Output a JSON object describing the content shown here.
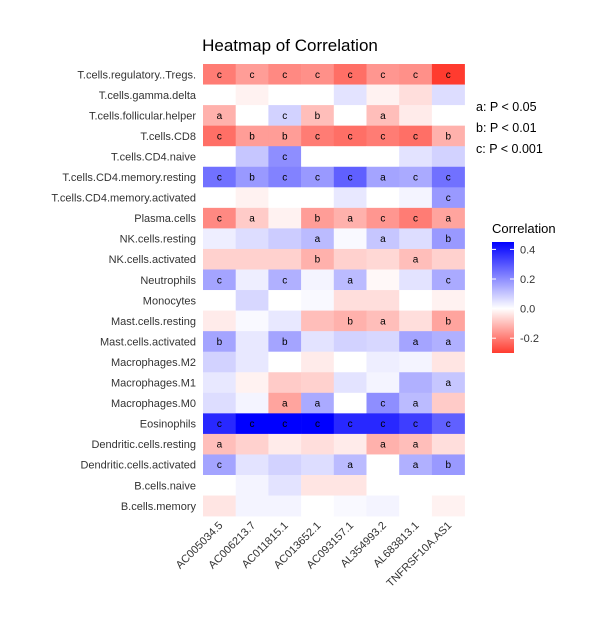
{
  "chart_data": {
    "type": "heatmap",
    "title": "Heatmap of Correlation",
    "columns": [
      "AC005034.5",
      "AC006213.7",
      "AC011815.1",
      "AC013652.1",
      "AC093157.1",
      "AL354993.2",
      "AL683813.1",
      "TNFRSF10A.AS1"
    ],
    "rows": [
      "T.cells.regulatory..Tregs.",
      "T.cells.gamma.delta",
      "T.cells.follicular.helper",
      "T.cells.CD8",
      "T.cells.CD4.naive",
      "T.cells.CD4.memory.resting",
      "T.cells.CD4.memory.activated",
      "Plasma.cells",
      "NK.cells.resting",
      "NK.cells.activated",
      "Neutrophils",
      "Monocytes",
      "Mast.cells.resting",
      "Mast.cells.activated",
      "Macrophages.M2",
      "Macrophages.M1",
      "Macrophages.M0",
      "Eosinophils",
      "Dendritic.cells.resting",
      "Dendritic.cells.activated",
      "B.cells.naive",
      "B.cells.memory"
    ],
    "values": [
      [
        -0.2,
        -0.15,
        -0.18,
        -0.17,
        -0.22,
        -0.16,
        -0.17,
        -0.3
      ],
      [
        0.0,
        -0.02,
        0.0,
        0.0,
        0.05,
        -0.02,
        -0.05,
        0.06
      ],
      [
        -0.12,
        0.0,
        0.08,
        -0.1,
        0.0,
        -0.1,
        -0.03,
        0.0
      ],
      [
        -0.22,
        -0.15,
        -0.15,
        -0.2,
        -0.22,
        -0.2,
        -0.22,
        -0.12
      ],
      [
        0.0,
        0.1,
        0.2,
        0.0,
        0.0,
        0.0,
        0.05,
        0.08
      ],
      [
        0.25,
        0.18,
        0.22,
        0.18,
        0.28,
        0.16,
        0.15,
        0.25
      ],
      [
        0.0,
        -0.02,
        0.0,
        0.0,
        0.04,
        0.0,
        0.02,
        0.18
      ],
      [
        -0.18,
        -0.08,
        -0.02,
        -0.15,
        -0.12,
        -0.16,
        -0.2,
        -0.14
      ],
      [
        0.03,
        0.06,
        0.09,
        0.12,
        0.01,
        0.1,
        0.06,
        0.18
      ],
      [
        -0.07,
        -0.07,
        -0.07,
        -0.12,
        -0.07,
        -0.06,
        -0.1,
        -0.07
      ],
      [
        0.16,
        0.03,
        0.14,
        0.02,
        0.12,
        -0.01,
        0.05,
        0.15
      ],
      [
        0.0,
        0.07,
        0.0,
        0.01,
        -0.05,
        -0.05,
        0.0,
        -0.02
      ],
      [
        -0.03,
        0.01,
        0.04,
        -0.1,
        -0.12,
        -0.1,
        -0.05,
        -0.14
      ],
      [
        0.16,
        0.04,
        0.16,
        0.05,
        0.08,
        0.07,
        0.16,
        0.14
      ],
      [
        0.08,
        0.04,
        0.0,
        -0.03,
        0.0,
        0.03,
        0.02,
        -0.04
      ],
      [
        0.04,
        -0.02,
        -0.08,
        -0.07,
        0.05,
        0.02,
        0.14,
        0.1
      ],
      [
        0.06,
        0.02,
        -0.14,
        0.15,
        0.0,
        0.2,
        0.12,
        -0.08
      ],
      [
        0.38,
        0.45,
        0.45,
        0.5,
        0.38,
        0.38,
        0.34,
        0.28
      ],
      [
        -0.1,
        -0.07,
        -0.03,
        -0.05,
        -0.03,
        -0.12,
        -0.1,
        -0.05
      ],
      [
        0.16,
        0.05,
        0.08,
        0.06,
        0.12,
        0.0,
        0.14,
        0.18
      ],
      [
        0.0,
        0.02,
        0.05,
        -0.04,
        -0.04,
        0.0,
        0.0,
        0.0
      ],
      [
        -0.04,
        0.02,
        0.02,
        0.0,
        0.01,
        0.02,
        0.0,
        -0.02
      ]
    ],
    "labels": [
      [
        "c",
        "c",
        "c",
        "c",
        "c",
        "c",
        "c",
        "c"
      ],
      [
        "",
        "",
        "",
        "",
        "",
        "",
        "",
        ""
      ],
      [
        "a",
        "",
        "c",
        "b",
        "",
        "a",
        "",
        ""
      ],
      [
        "c",
        "b",
        "b",
        "c",
        "c",
        "c",
        "c",
        "b"
      ],
      [
        "",
        "",
        "c",
        "",
        "",
        "",
        "",
        ""
      ],
      [
        "c",
        "b",
        "c",
        "c",
        "c",
        "a",
        "c",
        "c"
      ],
      [
        "",
        "",
        "",
        "",
        "",
        "",
        "",
        "c"
      ],
      [
        "c",
        "a",
        "",
        "b",
        "a",
        "c",
        "c",
        "a"
      ],
      [
        "",
        "",
        "",
        "a",
        "",
        "a",
        "",
        "b"
      ],
      [
        "",
        "",
        "",
        "b",
        "",
        "",
        "a",
        ""
      ],
      [
        "c",
        "",
        "c",
        "",
        "a",
        "",
        "",
        "c"
      ],
      [
        "",
        "",
        "",
        "",
        "",
        "",
        "",
        ""
      ],
      [
        "",
        "",
        "",
        "",
        "b",
        "a",
        "",
        "b"
      ],
      [
        "b",
        "",
        "b",
        "",
        "",
        "",
        "a",
        "a"
      ],
      [
        "",
        "",
        "",
        "",
        "",
        "",
        "",
        ""
      ],
      [
        "",
        "",
        "",
        "",
        "",
        "",
        "",
        "a"
      ],
      [
        "",
        "",
        "a",
        "a",
        "",
        "c",
        "a",
        ""
      ],
      [
        "c",
        "c",
        "c",
        "c",
        "c",
        "c",
        "c",
        "c"
      ],
      [
        "a",
        "",
        "",
        "",
        "",
        "a",
        "a",
        ""
      ],
      [
        "c",
        "",
        "",
        "",
        "a",
        "",
        "a",
        "b"
      ],
      [
        "",
        "",
        "",
        "",
        "",
        "",
        "",
        ""
      ],
      [
        "",
        "",
        "",
        "",
        "",
        "",
        "",
        ""
      ]
    ],
    "significance_key": [
      "a: P < 0.05",
      "b: P < 0.01",
      "c: P < 0.001"
    ],
    "legend": {
      "title": "Correlation",
      "ticks": [
        0.4,
        0.2,
        0.0,
        -0.2
      ],
      "tick_labels": [
        "0.4",
        "0.2",
        "0.0",
        "-0.2"
      ],
      "range": [
        -0.3,
        0.45
      ],
      "placement": "right"
    },
    "colors": {
      "low": "#FF3B2F",
      "mid": "#FFFFFF",
      "high": "#0000FF"
    },
    "grid": false
  }
}
